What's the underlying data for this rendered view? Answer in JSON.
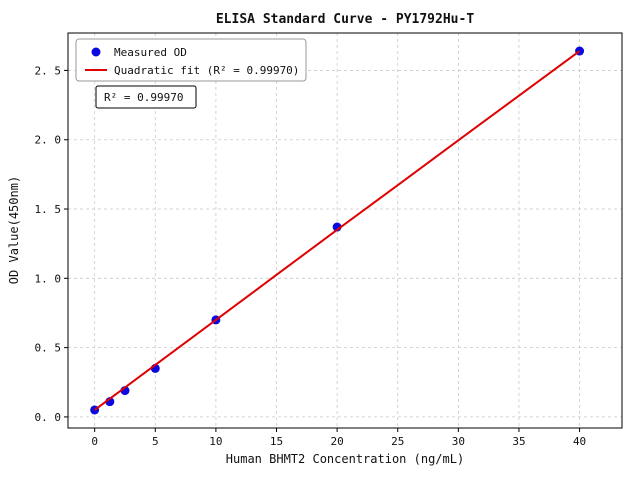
{
  "chart_data": {
    "type": "scatter",
    "title": "ELISA Standard Curve - PY1792Hu-T",
    "xlabel": "Human BHMT2 Concentration (ng/mL)",
    "ylabel": "OD Value(450nm)",
    "xlim": [
      -2.2,
      43.5
    ],
    "ylim": [
      -0.08,
      2.77
    ],
    "xticks": [
      0,
      5,
      10,
      15,
      20,
      25,
      30,
      35,
      40
    ],
    "xtick_labels": [
      "0",
      "5",
      "10",
      "15",
      "20",
      "25",
      "30",
      "35",
      "40"
    ],
    "yticks": [
      0,
      0.5,
      1.0,
      1.5,
      2.0,
      2.5
    ],
    "ytick_labels": [
      "0. 0",
      "0. 5",
      "1. 0",
      "1. 5",
      "2. 0",
      "2. 5"
    ],
    "grid": true,
    "grid_style": "dashed",
    "legend_position": "upper-left",
    "annotation": "R² = 0.99970",
    "r_squared": 0.9997,
    "series": [
      {
        "name": "Measured OD",
        "kind": "scatter",
        "color": "#0a0ae0",
        "points": [
          [
            0,
            0.05
          ],
          [
            1.25,
            0.11
          ],
          [
            2.5,
            0.19
          ],
          [
            5,
            0.35
          ],
          [
            10,
            0.7
          ],
          [
            20,
            1.37
          ],
          [
            40,
            2.64
          ]
        ]
      },
      {
        "name": "Quadratic fit (R² = 0.99970)",
        "kind": "line",
        "color": "#e00000",
        "points": [
          [
            0,
            0.05
          ],
          [
            5,
            0.375
          ],
          [
            10,
            0.7
          ],
          [
            15,
            1.025
          ],
          [
            20,
            1.35
          ],
          [
            25,
            1.672
          ],
          [
            30,
            1.996
          ],
          [
            35,
            2.318
          ],
          [
            40,
            2.64
          ]
        ]
      }
    ]
  }
}
